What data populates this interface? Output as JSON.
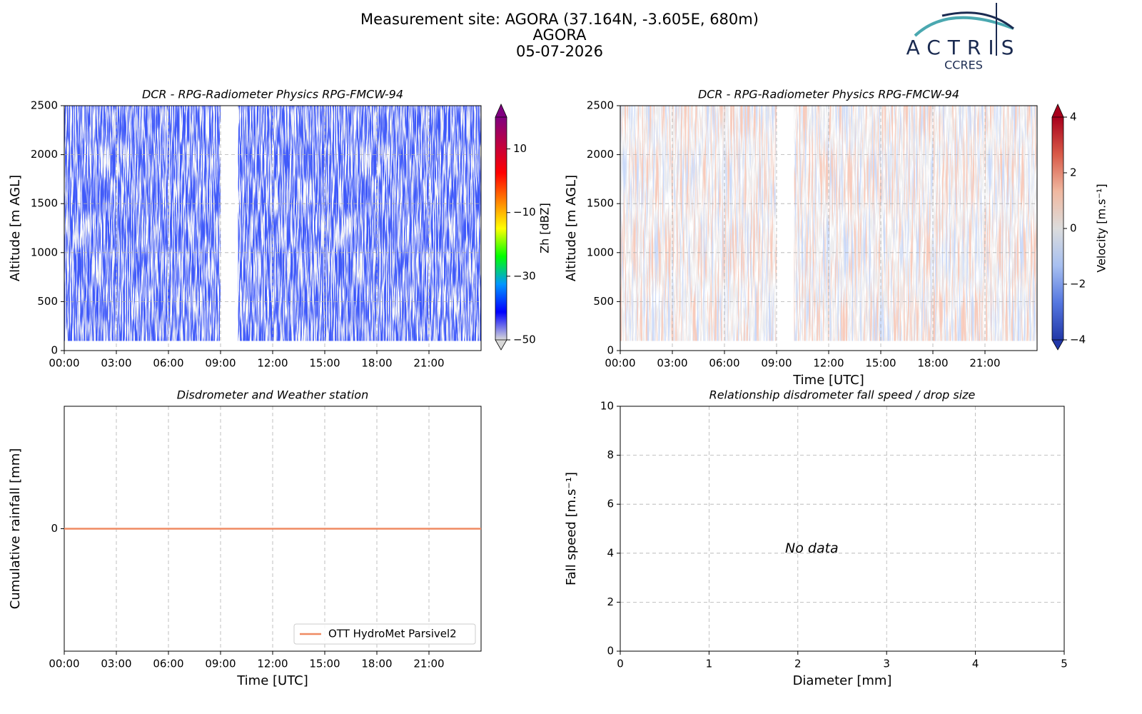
{
  "header": {
    "title_lines": [
      "Measurement site: AGORA (37.164N, -3.605E, 680m)",
      "AGORA",
      "05-07-2026"
    ],
    "logo": {
      "name": "ACTRIS",
      "subname": "CCRES"
    }
  },
  "chart_data": [
    {
      "type": "heatmap",
      "title": "DCR - RPG-Radiometer Physics RPG-FMCW-94",
      "ylabel": "Altitude [m AGL]",
      "xlim": [
        0,
        24
      ],
      "xticks": [
        {
          "value": 0,
          "label": "00:00"
        },
        {
          "value": 3,
          "label": "03:00"
        },
        {
          "value": 6,
          "label": "06:00"
        },
        {
          "value": 9,
          "label": "09:00"
        },
        {
          "value": 12,
          "label": "12:00"
        },
        {
          "value": 15,
          "label": "15:00"
        },
        {
          "value": 18,
          "label": "18:00"
        },
        {
          "value": 21,
          "label": "21:00"
        }
      ],
      "ylim": [
        0,
        2500
      ],
      "yticks": [
        0,
        500,
        1000,
        1500,
        2000,
        2500
      ],
      "grid": true,
      "colorbar": {
        "label": "Zh [dBZ]",
        "lim": [
          -50,
          20
        ],
        "ticks": [
          {
            "value": -50,
            "label": "−50"
          },
          {
            "value": -30,
            "label": "−30"
          },
          {
            "value": -10,
            "label": "−10"
          },
          10
        ],
        "colors": [
          "#d8d8d8",
          "#0000ff",
          "#0096ff",
          "#00ff00",
          "#ffff00",
          "#ff8000",
          "#ff0000",
          "#c00040",
          "#800080"
        ]
      }
    },
    {
      "type": "heatmap",
      "title": "DCR - RPG-Radiometer Physics RPG-FMCW-94",
      "ylabel": "Altitude [m AGL]",
      "xlabel": "Time [UTC]",
      "xlim": [
        0,
        24
      ],
      "xticks": [
        {
          "value": 0,
          "label": "00:00"
        },
        {
          "value": 3,
          "label": "03:00"
        },
        {
          "value": 6,
          "label": "06:00"
        },
        {
          "value": 9,
          "label": "09:00"
        },
        {
          "value": 12,
          "label": "12:00"
        },
        {
          "value": 15,
          "label": "15:00"
        },
        {
          "value": 18,
          "label": "18:00"
        },
        {
          "value": 21,
          "label": "21:00"
        }
      ],
      "ylim": [
        0,
        2500
      ],
      "yticks": [
        0,
        500,
        1000,
        1500,
        2000,
        2500
      ],
      "grid": true,
      "colorbar": {
        "label": "Velocity [m.s⁻¹]",
        "lim": [
          -4,
          4
        ],
        "ticks": [
          {
            "value": -4,
            "label": "−4"
          },
          {
            "value": -2,
            "label": "−2"
          },
          0,
          2,
          4
        ],
        "colors": [
          "#2238a8",
          "#5577e0",
          "#a8c0f0",
          "#dcdcdc",
          "#f0b8a0",
          "#d85a48",
          "#a8001c"
        ]
      }
    },
    {
      "type": "line",
      "title": "Disdrometer and Weather station",
      "ylabel": "Cumulative rainfall [mm]",
      "xlabel": "Time [UTC]",
      "x": [
        0,
        24
      ],
      "series": [
        {
          "name": "OTT HydroMet Parsivel2",
          "color": "#ef8a62",
          "values": [
            0,
            0
          ]
        }
      ],
      "xlim": [
        0,
        24
      ],
      "xticks": [
        {
          "value": 0,
          "label": "00:00"
        },
        {
          "value": 3,
          "label": "03:00"
        },
        {
          "value": 6,
          "label": "06:00"
        },
        {
          "value": 9,
          "label": "09:00"
        },
        {
          "value": 12,
          "label": "12:00"
        },
        {
          "value": 15,
          "label": "15:00"
        },
        {
          "value": 18,
          "label": "18:00"
        },
        {
          "value": 21,
          "label": "21:00"
        }
      ],
      "ylim": [
        -0.055,
        0.055
      ],
      "yticks": [
        0
      ],
      "grid": true,
      "legend": "lower-right"
    },
    {
      "type": "scatter",
      "title": "Relationship disdrometer fall speed / drop size",
      "ylabel": "Fall speed [m.s⁻¹]",
      "xlabel": "Diameter [mm]",
      "annotation": "No data",
      "xlim": [
        0,
        5
      ],
      "xticks": [
        0,
        1,
        2,
        3,
        4,
        5
      ],
      "ylim": [
        0,
        10
      ],
      "yticks": [
        0,
        2,
        4,
        6,
        8,
        10
      ],
      "grid": true
    }
  ]
}
